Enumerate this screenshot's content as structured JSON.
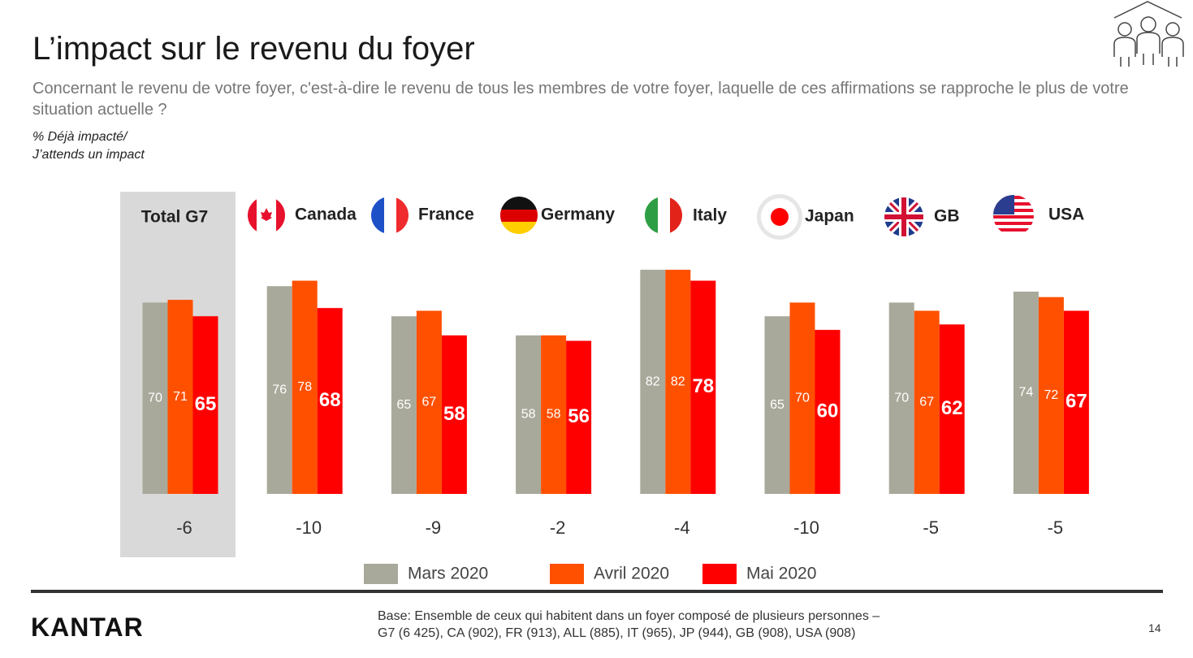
{
  "title": "L’impact sur le revenu du foyer",
  "subtitle": "Concernant le revenu de votre foyer, c'est-à-dire le revenu de tous les membres de votre foyer, laquelle de ces affirmations se rapproche le plus de votre situation actuelle ?",
  "note": [
    "%  Déjà impacté/",
    "J’attends un impact"
  ],
  "chart_data": {
    "type": "bar",
    "categories": [
      "Total G7",
      "Canada",
      "France",
      "Germany",
      "Italy",
      "Japan",
      "GB",
      "USA"
    ],
    "series": [
      {
        "name": "Mars 2020",
        "color": "#a9a99b",
        "values": [
          70,
          76,
          65,
          58,
          82,
          65,
          70,
          74
        ]
      },
      {
        "name": "Avril 2020",
        "color": "#ff5000",
        "values": [
          71,
          78,
          67,
          58,
          82,
          70,
          67,
          72
        ]
      },
      {
        "name": "Mai 2020",
        "color": "#ff0000",
        "values": [
          65,
          68,
          58,
          56,
          78,
          60,
          62,
          67
        ]
      }
    ],
    "differences": [
      -6,
      -10,
      -9,
      -2,
      -4,
      -10,
      -5,
      -5
    ]
  },
  "footer": {
    "logo": "KANTAR",
    "base": [
      "Base: Ensemble de ceux qui habitent dans un foyer composé de plusieurs personnes –",
      "G7 (6 425), CA (902), FR (913), ALL (885), IT (965), JP (944), GB (908), USA (908)"
    ],
    "page_number": "14"
  }
}
